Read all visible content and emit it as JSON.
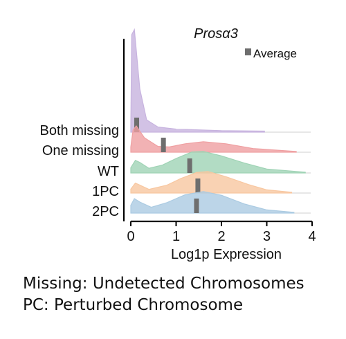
{
  "chart_data": {
    "type": "ridgeline",
    "title": "Prosα3",
    "xlabel": "Log1p Expression",
    "ylabel": "",
    "xlim": [
      0,
      4
    ],
    "xticks": [
      "0",
      "1",
      "2",
      "3",
      "4"
    ],
    "grid": false,
    "legend": {
      "placement": "top-right",
      "entries": [
        {
          "label": "Average",
          "color": "#6e6e6e"
        }
      ]
    },
    "series": [
      {
        "name": "Both missing",
        "color": "#c7b3df",
        "average": 0.13,
        "max_x": 2.95,
        "relative_peak_height": 3.9,
        "density": [
          [
            0,
            0.05
          ],
          [
            0.02,
            0.95
          ],
          [
            0.08,
            1.0
          ],
          [
            0.2,
            0.42
          ],
          [
            0.35,
            0.12
          ],
          [
            0.6,
            0.05
          ],
          [
            1.0,
            0.03
          ],
          [
            2.0,
            0.015
          ],
          [
            2.95,
            0.01
          ]
        ]
      },
      {
        "name": "One missing",
        "color": "#ef9fa1",
        "average": 0.72,
        "max_x": 3.65,
        "relative_peak_height": 1.0,
        "density": [
          [
            0,
            0.2
          ],
          [
            0.05,
            0.85
          ],
          [
            0.12,
            1.0
          ],
          [
            0.3,
            0.55
          ],
          [
            0.6,
            0.22
          ],
          [
            0.85,
            0.2
          ],
          [
            1.2,
            0.32
          ],
          [
            1.6,
            0.4
          ],
          [
            2.1,
            0.32
          ],
          [
            2.7,
            0.14
          ],
          [
            3.65,
            0.03
          ]
        ]
      },
      {
        "name": "WT",
        "color": "#9fd3b5",
        "average": 1.3,
        "max_x": 3.85,
        "relative_peak_height": 1.0,
        "density": [
          [
            0,
            0.2
          ],
          [
            0.1,
            0.48
          ],
          [
            0.2,
            0.4
          ],
          [
            0.4,
            0.18
          ],
          [
            0.7,
            0.3
          ],
          [
            1.0,
            0.55
          ],
          [
            1.35,
            0.8
          ],
          [
            1.6,
            0.82
          ],
          [
            2.0,
            0.65
          ],
          [
            2.5,
            0.38
          ],
          [
            3.0,
            0.15
          ],
          [
            3.85,
            0.03
          ]
        ]
      },
      {
        "name": "1PC",
        "color": "#f8c7a0",
        "average": 1.48,
        "max_x": 3.55,
        "relative_peak_height": 1.0,
        "density": [
          [
            0,
            0.15
          ],
          [
            0.1,
            0.38
          ],
          [
            0.2,
            0.3
          ],
          [
            0.4,
            0.14
          ],
          [
            0.8,
            0.3
          ],
          [
            1.1,
            0.55
          ],
          [
            1.45,
            0.78
          ],
          [
            1.7,
            0.82
          ],
          [
            2.1,
            0.62
          ],
          [
            2.6,
            0.32
          ],
          [
            3.0,
            0.12
          ],
          [
            3.55,
            0.03
          ]
        ]
      },
      {
        "name": "2PC",
        "color": "#abcbe2",
        "average": 1.45,
        "max_x": 3.6,
        "relative_peak_height": 1.0,
        "density": [
          [
            0,
            0.3
          ],
          [
            0.08,
            0.55
          ],
          [
            0.2,
            0.42
          ],
          [
            0.45,
            0.22
          ],
          [
            0.8,
            0.4
          ],
          [
            1.2,
            0.7
          ],
          [
            1.6,
            0.82
          ],
          [
            2.0,
            0.68
          ],
          [
            2.5,
            0.35
          ],
          [
            3.0,
            0.12
          ],
          [
            3.6,
            0.03
          ]
        ]
      }
    ]
  },
  "captions": [
    "Missing: Undetected Chromosomes",
    "PC: Perturbed Chromosome"
  ]
}
